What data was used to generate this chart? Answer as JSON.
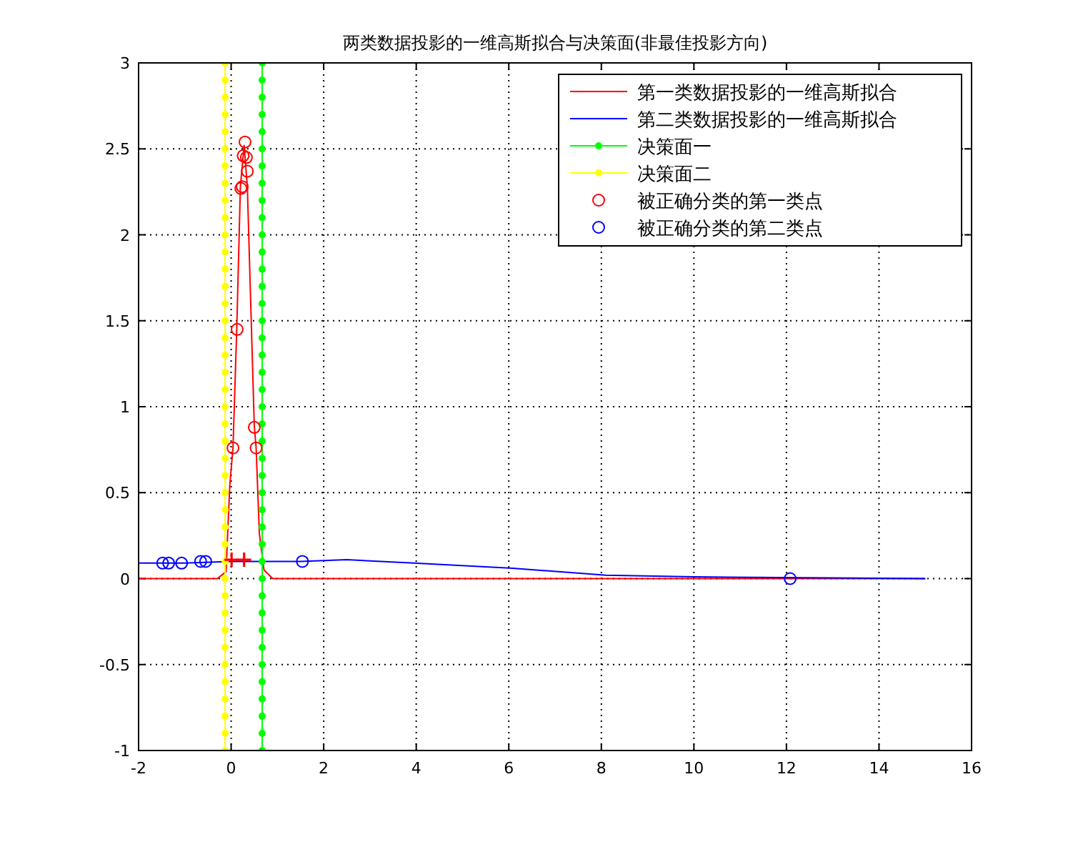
{
  "chart_data": {
    "type": "line",
    "title": "两类数据投影的一维高斯拟合与决策面(非最佳投影方向)",
    "xlim": [
      -2,
      16
    ],
    "xticks": [
      -2,
      0,
      2,
      4,
      6,
      8,
      10,
      12,
      14,
      16
    ],
    "ylim": [
      -1,
      3
    ],
    "yticks": [
      -1,
      -0.5,
      0,
      0.5,
      1,
      1.5,
      2,
      2.5,
      3
    ],
    "grid": true,
    "legend": "top right",
    "line_style": "solid",
    "series": [
      {
        "name": "第一类数据投影的一维高斯拟合",
        "color": "#ff0000",
        "type": "line",
        "marker": "none",
        "x": [
          -2,
          -0.6,
          -0.3,
          -0.11,
          -0.03,
          0.04,
          0.12,
          0.2,
          0.28,
          0.35,
          0.5,
          0.54,
          0.61,
          0.71,
          0.9,
          2,
          15
        ],
        "values": [
          0,
          0,
          0,
          0.04,
          0.54,
          0.76,
          1.44,
          2.28,
          2.52,
          2.28,
          0.89,
          0.76,
          0.26,
          0.05,
          0,
          0,
          0
        ]
      },
      {
        "name": "第二类数据投影的一维高斯拟合",
        "color": "#0000ff",
        "type": "line",
        "marker": "none",
        "x": [
          -2,
          -1,
          0,
          1.5,
          2.5,
          3.95,
          6.08,
          8.1,
          10,
          15
        ],
        "values": [
          0.09,
          0.09,
          0.1,
          0.1,
          0.11,
          0.09,
          0.06,
          0.02,
          0.01,
          0
        ]
      },
      {
        "name": "决策面一",
        "color": "#00ff00",
        "type": "line",
        "marker": "circle",
        "x": [
          0.67,
          0.67,
          0.67,
          0.67,
          0.67,
          0.67,
          0.67,
          0.67,
          0.67,
          0.67,
          0.67,
          0.67,
          0.67,
          0.67,
          0.67,
          0.67,
          0.67,
          0.67,
          0.67,
          0.67,
          0.67,
          0.67,
          0.67,
          0.67,
          0.67,
          0.67,
          0.67,
          0.67,
          0.67,
          0.67,
          0.67,
          0.67,
          0.67,
          0.67,
          0.67,
          0.67,
          0.67,
          0.67,
          0.67,
          0.67,
          0.67
        ],
        "values": [
          -1,
          -0.9,
          -0.8,
          -0.7,
          -0.6,
          -0.5,
          -0.4,
          -0.3,
          -0.2,
          -0.1,
          0,
          0.1,
          0.2,
          0.3,
          0.4,
          0.5,
          0.6,
          0.7,
          0.8,
          0.9,
          1,
          1.1,
          1.2,
          1.3,
          1.4,
          1.5,
          1.6,
          1.7,
          1.8,
          1.9,
          2,
          2.1,
          2.2,
          2.3,
          2.4,
          2.5,
          2.6,
          2.7,
          2.8,
          2.9,
          3
        ]
      },
      {
        "name": "决策面二",
        "color": "#ffff00",
        "type": "line",
        "marker": "circle",
        "x": [
          -0.13,
          -0.13,
          -0.13,
          -0.13,
          -0.13,
          -0.13,
          -0.13,
          -0.13,
          -0.13,
          -0.13,
          -0.13,
          -0.13,
          -0.13,
          -0.13,
          -0.13,
          -0.13,
          -0.13,
          -0.13,
          -0.13,
          -0.13,
          -0.13,
          -0.13,
          -0.13,
          -0.13,
          -0.13,
          -0.13,
          -0.13,
          -0.13,
          -0.13,
          -0.13,
          -0.13,
          -0.13,
          -0.13,
          -0.13,
          -0.13,
          -0.13,
          -0.13,
          -0.13,
          -0.13,
          -0.13,
          -0.13
        ],
        "values": [
          -1,
          -0.9,
          -0.8,
          -0.7,
          -0.6,
          -0.5,
          -0.4,
          -0.3,
          -0.2,
          -0.1,
          0,
          0.1,
          0.2,
          0.3,
          0.4,
          0.5,
          0.6,
          0.7,
          0.8,
          0.9,
          1,
          1.1,
          1.2,
          1.3,
          1.4,
          1.5,
          1.6,
          1.7,
          1.8,
          1.9,
          2,
          2.1,
          2.2,
          2.3,
          2.4,
          2.5,
          2.6,
          2.7,
          2.8,
          2.9,
          3
        ]
      },
      {
        "name": "被正确分类的第一类点",
        "color": "#ff0000",
        "type": "scatter",
        "marker": "circle",
        "x": [
          0.04,
          0.13,
          0.21,
          0.24,
          0.26,
          0.3,
          0.33,
          0.35,
          0.5,
          0.54
        ],
        "values": [
          0.76,
          1.45,
          2.27,
          2.28,
          2.46,
          2.54,
          2.45,
          2.37,
          0.88,
          0.76
        ]
      },
      {
        "name": "被正确分类的第二类点",
        "color": "#0000ff",
        "type": "scatter",
        "marker": "circle",
        "x": [
          -1.48,
          -1.35,
          -1.07,
          -0.66,
          -0.55,
          1.54,
          12.08
        ],
        "values": [
          0.09,
          0.09,
          0.09,
          0.1,
          0.1,
          0.1,
          0
        ]
      },
      {
        "color": "#ff0000",
        "type": "scatter",
        "marker": "cross",
        "x": [
          0.01,
          0.28
        ],
        "values": [
          0.11,
          0.11
        ]
      }
    ]
  }
}
